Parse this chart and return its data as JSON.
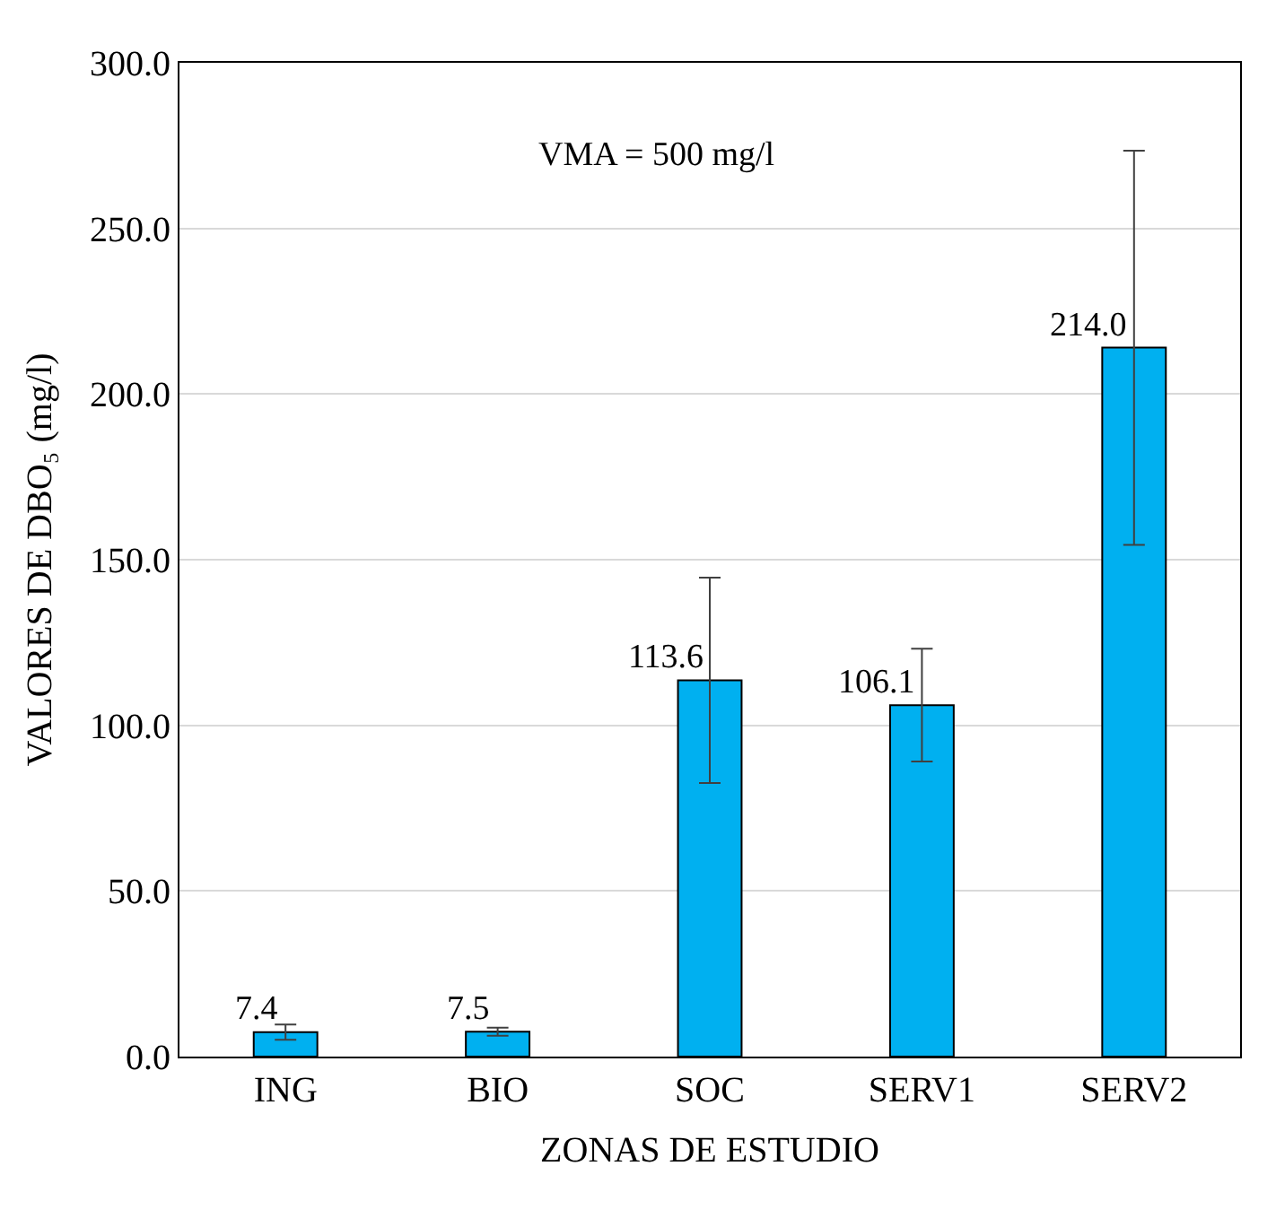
{
  "chart_data": {
    "type": "bar",
    "xlabel": "ZONAS DE ESTUDIO",
    "ylabel": "VALORES DE DBO₅ (mg/l)",
    "annotations": [
      "VMA = 500 mg/l"
    ],
    "categories": [
      "ING",
      "BIO",
      "SOC",
      "SERV1",
      "SERV2"
    ],
    "values": [
      7.4,
      7.5,
      113.6,
      106.1,
      214.0
    ],
    "errors": [
      2.3,
      1.2,
      31,
      17,
      59.5
    ],
    "color": "#00b0f0",
    "ylim": [
      0,
      300
    ],
    "yticks": [
      {
        "value": 0,
        "label": "0.0"
      },
      {
        "value": 50,
        "label": "50.0"
      },
      {
        "value": 100,
        "label": "100.0"
      },
      {
        "value": 150,
        "label": "150.0"
      },
      {
        "value": 200,
        "label": "200.0"
      },
      {
        "value": 250,
        "label": "250.0"
      },
      {
        "value": 300,
        "label": "300.0"
      }
    ],
    "value_labels": [
      "7.4",
      "7.5",
      "113.6",
      "106.1",
      "214.0"
    ],
    "grid": "y"
  }
}
